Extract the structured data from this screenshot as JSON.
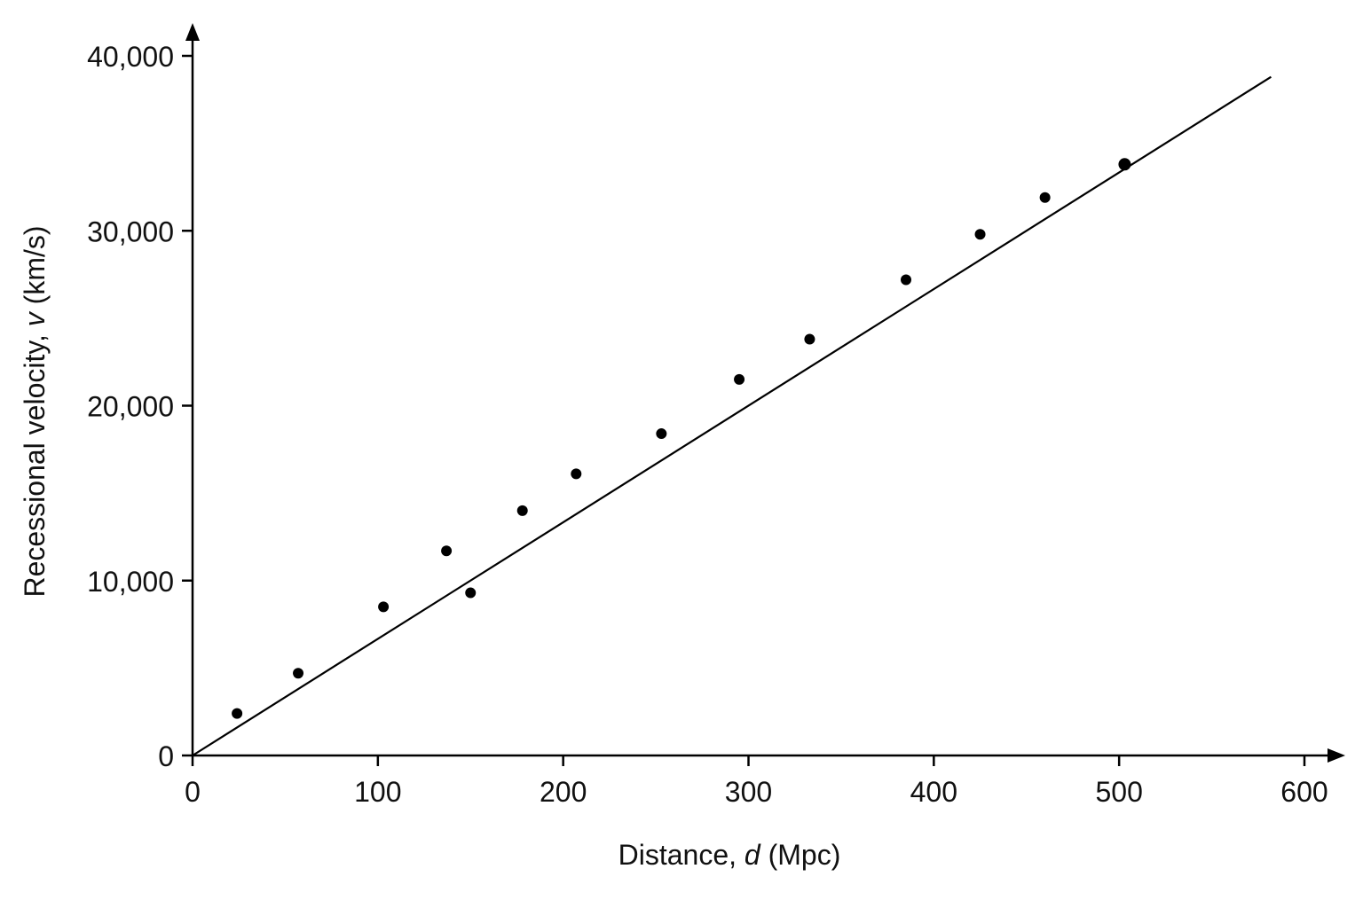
{
  "chart_data": {
    "type": "scatter",
    "title": "",
    "xlabel": {
      "prefix": "Distance, ",
      "symbol": "d",
      "suffix": " (Mpc)"
    },
    "ylabel": {
      "prefix": "Recessional velocity, ",
      "symbol": "v",
      "suffix": " (km/s)"
    },
    "xlim": [
      0,
      600
    ],
    "ylim": [
      0,
      40000
    ],
    "x_ticks": [
      {
        "value": 0,
        "label": "0"
      },
      {
        "value": 100,
        "label": "100"
      },
      {
        "value": 200,
        "label": "200"
      },
      {
        "value": 300,
        "label": "300"
      },
      {
        "value": 400,
        "label": "400"
      },
      {
        "value": 500,
        "label": "500"
      },
      {
        "value": 600,
        "label": "600"
      }
    ],
    "y_ticks": [
      {
        "value": 0,
        "label": "0"
      },
      {
        "value": 10000,
        "label": "10,000"
      },
      {
        "value": 20000,
        "label": "20,000"
      },
      {
        "value": 30000,
        "label": "30,000"
      },
      {
        "value": 40000,
        "label": "40,000"
      }
    ],
    "grid": false,
    "legend": "none",
    "points": [
      {
        "x": 24,
        "y": 2400
      },
      {
        "x": 57,
        "y": 4700
      },
      {
        "x": 103,
        "y": 8500
      },
      {
        "x": 137,
        "y": 11700
      },
      {
        "x": 150,
        "y": 9300
      },
      {
        "x": 178,
        "y": 14000
      },
      {
        "x": 207,
        "y": 16100
      },
      {
        "x": 253,
        "y": 18400
      },
      {
        "x": 295,
        "y": 21500
      },
      {
        "x": 333,
        "y": 23800
      },
      {
        "x": 385,
        "y": 27200
      },
      {
        "x": 425,
        "y": 29800
      },
      {
        "x": 460,
        "y": 31900
      },
      {
        "x": 503,
        "y": 33800
      }
    ],
    "fit_line": {
      "from": {
        "x": 0,
        "y": 0
      },
      "to": {
        "x": 582,
        "y": 38800
      }
    },
    "colors": {
      "ink": "#000000",
      "text": "#111111",
      "background": "#ffffff"
    }
  }
}
